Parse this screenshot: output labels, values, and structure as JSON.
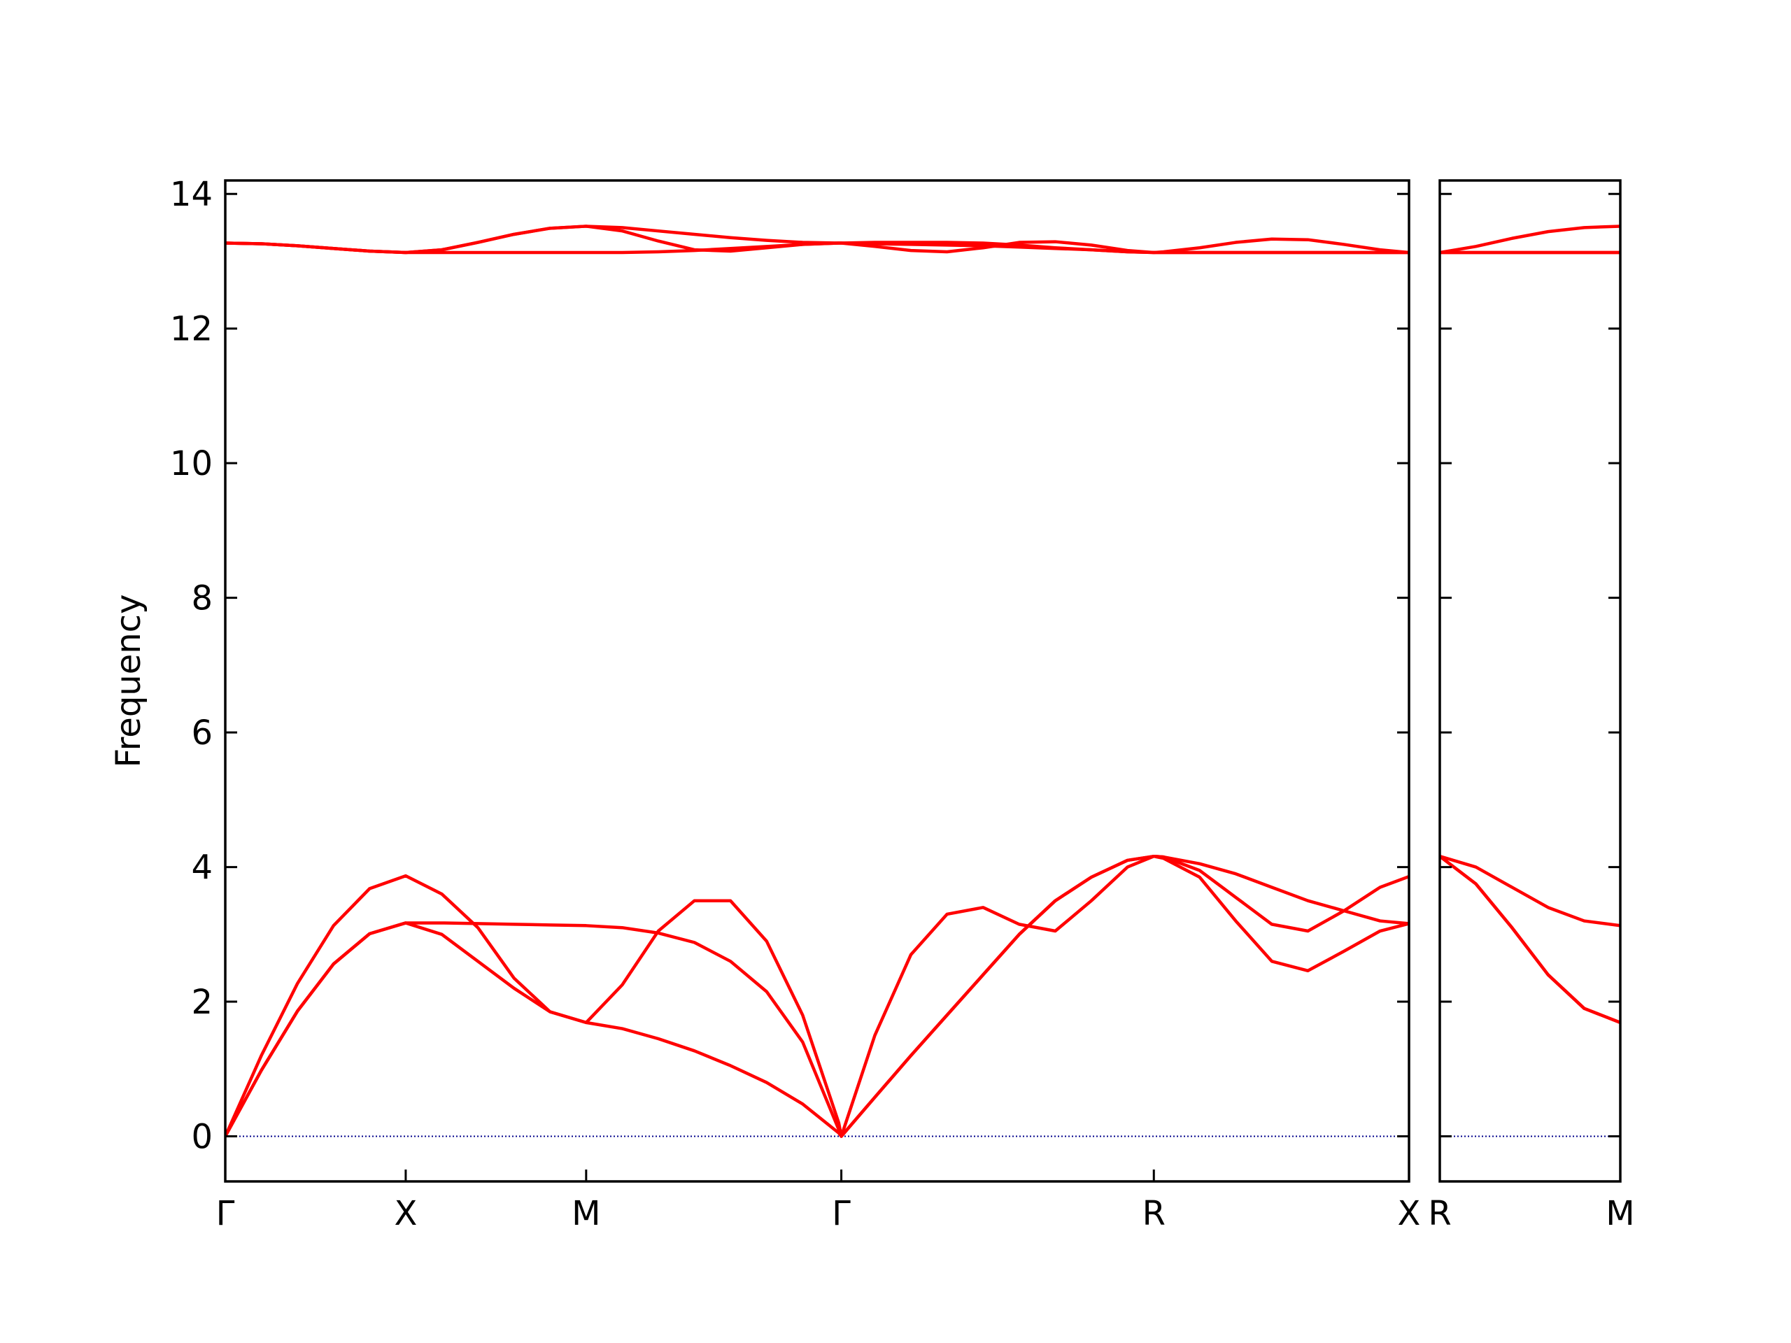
{
  "chart_data": [
    {
      "type": "line",
      "ylabel": "Frequency",
      "xlim": [
        0,
        3.2802
      ],
      "ylim": [
        -0.67,
        14.2
      ],
      "yticks": [
        0,
        2,
        4,
        6,
        8,
        10,
        12,
        14
      ],
      "show_ytick_labels": true,
      "xticks": [
        {
          "value": 0,
          "label": "Γ"
        },
        {
          "value": 0.5,
          "label": "X"
        },
        {
          "value": 1.0,
          "label": "M"
        },
        {
          "value": 1.7071,
          "label": "Γ"
        },
        {
          "value": 2.5731,
          "label": "R"
        },
        {
          "value": 3.2802,
          "label": "X"
        }
      ],
      "hline": 0,
      "hline_color": "#00008b",
      "x": [
        0,
        0.1,
        0.2,
        0.3,
        0.4,
        0.5,
        0.6,
        0.7,
        0.8,
        0.9,
        1.0,
        1.1,
        1.2,
        1.3,
        1.4,
        1.5,
        1.6,
        1.7,
        1.7071,
        1.8,
        1.9,
        2.0,
        2.1,
        2.2,
        2.3,
        2.4,
        2.5,
        2.5731,
        2.6,
        2.7,
        2.8,
        2.9,
        3.0,
        3.1,
        3.2,
        3.2802
      ],
      "series": [
        {
          "color": "#ff0000",
          "values": [
            0,
            0.98,
            1.86,
            2.56,
            3.01,
            3.17,
            3.17,
            3.16,
            3.15,
            3.14,
            3.13,
            3.1,
            3.02,
            2.88,
            2.6,
            2.15,
            1.4,
            0.1,
            0,
            0.58,
            1.2,
            1.8,
            2.4,
            3.0,
            3.5,
            3.85,
            4.1,
            4.16,
            4.15,
            4.05,
            3.9,
            3.7,
            3.5,
            3.35,
            3.2,
            3.16
          ]
        },
        {
          "color": "#ff0000",
          "values": [
            0,
            0.98,
            1.86,
            2.56,
            3.01,
            3.17,
            3.0,
            2.6,
            2.2,
            1.85,
            1.69,
            2.25,
            3.05,
            3.5,
            3.5,
            2.9,
            1.8,
            0.2,
            0,
            0.58,
            1.2,
            1.8,
            2.4,
            3.0,
            3.5,
            3.85,
            4.1,
            4.16,
            4.13,
            3.85,
            3.2,
            2.6,
            2.46,
            2.75,
            3.05,
            3.16
          ]
        },
        {
          "color": "#ff0000",
          "values": [
            0,
            1.2,
            2.27,
            3.13,
            3.68,
            3.87,
            3.6,
            3.1,
            2.35,
            1.85,
            1.69,
            1.6,
            1.45,
            1.27,
            1.05,
            0.8,
            0.48,
            0.05,
            0,
            1.5,
            2.7,
            3.3,
            3.4,
            3.15,
            3.05,
            3.5,
            4.0,
            4.16,
            4.15,
            3.95,
            3.55,
            3.15,
            3.05,
            3.35,
            3.7,
            3.86
          ]
        },
        {
          "color": "#ff0000",
          "values": [
            13.27,
            13.26,
            13.23,
            13.19,
            13.15,
            13.13,
            13.13,
            13.13,
            13.13,
            13.13,
            13.13,
            13.13,
            13.14,
            13.16,
            13.19,
            13.22,
            13.25,
            13.27,
            13.27,
            13.26,
            13.25,
            13.24,
            13.23,
            13.21,
            13.19,
            13.17,
            13.14,
            13.13,
            13.13,
            13.13,
            13.13,
            13.13,
            13.13,
            13.13,
            13.13,
            13.13
          ]
        },
        {
          "color": "#ff0000",
          "values": [
            13.27,
            13.26,
            13.23,
            13.19,
            13.15,
            13.13,
            13.17,
            13.28,
            13.4,
            13.49,
            13.52,
            13.45,
            13.3,
            13.17,
            13.15,
            13.2,
            13.25,
            13.27,
            13.27,
            13.22,
            13.16,
            13.14,
            13.2,
            13.28,
            13.29,
            13.24,
            13.16,
            13.13,
            13.13,
            13.13,
            13.13,
            13.13,
            13.13,
            13.13,
            13.13,
            13.13
          ]
        },
        {
          "color": "#ff0000",
          "values": [
            13.27,
            13.26,
            13.23,
            13.19,
            13.15,
            13.13,
            13.17,
            13.28,
            13.4,
            13.49,
            13.52,
            13.5,
            13.45,
            13.4,
            13.35,
            13.31,
            13.28,
            13.27,
            13.27,
            13.28,
            13.28,
            13.28,
            13.27,
            13.24,
            13.2,
            13.17,
            13.14,
            13.13,
            13.14,
            13.2,
            13.28,
            13.33,
            13.32,
            13.25,
            13.17,
            13.13
          ]
        }
      ]
    },
    {
      "type": "line",
      "xlim": [
        0,
        0.5
      ],
      "ylim": [
        -0.67,
        14.2
      ],
      "yticks": [
        0,
        2,
        4,
        6,
        8,
        10,
        12,
        14
      ],
      "show_ytick_labels": false,
      "xticks": [
        {
          "value": 0,
          "label": "R"
        },
        {
          "value": 0.5,
          "label": "M"
        }
      ],
      "hline": 0,
      "hline_color": "#00008b",
      "x": [
        0,
        0.1,
        0.2,
        0.3,
        0.4,
        0.5
      ],
      "series": [
        {
          "color": "#ff0000",
          "values": [
            4.16,
            4.0,
            3.7,
            3.4,
            3.2,
            3.13
          ]
        },
        {
          "color": "#ff0000",
          "values": [
            4.16,
            3.75,
            3.1,
            2.4,
            1.9,
            1.69
          ]
        },
        {
          "color": "#ff0000",
          "values": [
            4.16,
            3.75,
            3.1,
            2.4,
            1.9,
            1.69
          ]
        },
        {
          "color": "#ff0000",
          "values": [
            13.13,
            13.13,
            13.13,
            13.13,
            13.13,
            13.13
          ]
        },
        {
          "color": "#ff0000",
          "values": [
            13.13,
            13.13,
            13.13,
            13.13,
            13.13,
            13.13
          ]
        },
        {
          "color": "#ff0000",
          "values": [
            13.13,
            13.22,
            13.34,
            13.44,
            13.5,
            13.52
          ]
        }
      ]
    }
  ]
}
